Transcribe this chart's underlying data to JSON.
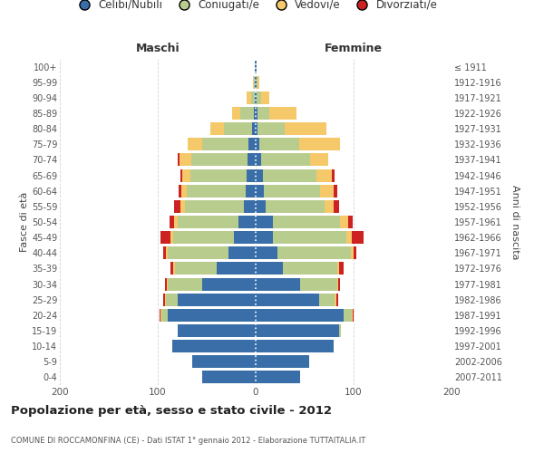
{
  "age_groups": [
    "0-4",
    "5-9",
    "10-14",
    "15-19",
    "20-24",
    "25-29",
    "30-34",
    "35-39",
    "40-44",
    "45-49",
    "50-54",
    "55-59",
    "60-64",
    "65-69",
    "70-74",
    "75-79",
    "80-84",
    "85-89",
    "90-94",
    "95-99",
    "100+"
  ],
  "birth_years": [
    "2007-2011",
    "2002-2006",
    "1997-2001",
    "1992-1996",
    "1987-1991",
    "1982-1986",
    "1977-1981",
    "1972-1976",
    "1967-1971",
    "1962-1966",
    "1957-1961",
    "1952-1956",
    "1947-1951",
    "1942-1946",
    "1937-1941",
    "1932-1936",
    "1927-1931",
    "1922-1926",
    "1917-1921",
    "1912-1916",
    "≤ 1911"
  ],
  "males_celibi": [
    55,
    65,
    85,
    80,
    90,
    80,
    55,
    40,
    28,
    22,
    18,
    12,
    10,
    9,
    8,
    7,
    4,
    2,
    1,
    1,
    1
  ],
  "males_coniugati": [
    0,
    0,
    0,
    0,
    6,
    12,
    35,
    42,
    62,
    62,
    62,
    60,
    60,
    58,
    58,
    48,
    28,
    14,
    4,
    1,
    0
  ],
  "males_vedovi": [
    0,
    0,
    0,
    0,
    1,
    1,
    1,
    2,
    2,
    3,
    3,
    5,
    6,
    8,
    12,
    14,
    14,
    8,
    4,
    1,
    0
  ],
  "males_divorziati": [
    0,
    0,
    0,
    0,
    1,
    1,
    2,
    3,
    2,
    10,
    5,
    6,
    3,
    2,
    2,
    0,
    0,
    0,
    0,
    0,
    0
  ],
  "females_nubili": [
    45,
    55,
    80,
    85,
    90,
    65,
    45,
    28,
    22,
    18,
    18,
    10,
    8,
    7,
    6,
    4,
    2,
    2,
    1,
    1,
    1
  ],
  "females_coniugate": [
    0,
    0,
    0,
    2,
    8,
    16,
    38,
    55,
    75,
    75,
    68,
    60,
    58,
    55,
    50,
    40,
    28,
    12,
    5,
    1,
    0
  ],
  "females_vedove": [
    0,
    0,
    0,
    0,
    1,
    1,
    1,
    2,
    3,
    5,
    8,
    10,
    14,
    16,
    18,
    42,
    42,
    28,
    8,
    2,
    0
  ],
  "females_divorziate": [
    0,
    0,
    0,
    0,
    1,
    2,
    2,
    5,
    3,
    12,
    5,
    5,
    3,
    3,
    0,
    0,
    0,
    0,
    0,
    0,
    0
  ],
  "colors_celibi": "#3a6ea8",
  "colors_coniugati": "#b8cc8e",
  "colors_vedovi": "#f5c96a",
  "colors_divorziati": "#cc2222",
  "xlim": 200,
  "title": "Popolazione per età, sesso e stato civile - 2012",
  "subtitle": "COMUNE DI ROCCAMONFINA (CE) - Dati ISTAT 1° gennaio 2012 - Elaborazione TUTTAITALIA.IT",
  "ylabel_left": "Fasce di età",
  "ylabel_right": "Anni di nascita",
  "label_maschi": "Maschi",
  "label_femmine": "Femmine",
  "legend_labels": [
    "Celibi/Nubili",
    "Coniugati/e",
    "Vedovi/e",
    "Divorziati/e"
  ],
  "bg_color": "#ffffff",
  "grid_color": "#cccccc"
}
